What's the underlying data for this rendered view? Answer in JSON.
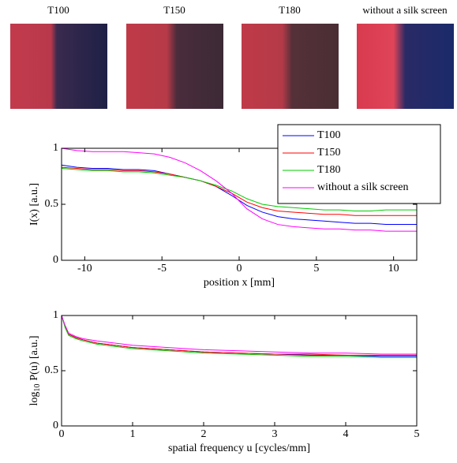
{
  "images": [
    {
      "label": "T100"
    },
    {
      "label": "T150"
    },
    {
      "label": "T180"
    },
    {
      "label": "without a silk screen"
    }
  ],
  "chart_data": [
    {
      "type": "line",
      "x_label": "position x [mm]",
      "y_label": "I(x) [a.u.]",
      "xlim": [
        -11.5,
        11.5
      ],
      "ylim": [
        0,
        1
      ],
      "xticks": [
        -10,
        -5,
        0,
        5,
        10
      ],
      "yticks": [
        0,
        0.5,
        1
      ],
      "legend": "top-right",
      "x": [
        -11.5,
        -10.5,
        -9.5,
        -8.5,
        -7.5,
        -6.5,
        -5.5,
        -4.5,
        -3.5,
        -2.5,
        -1.5,
        -0.5,
        0.5,
        1.5,
        2.5,
        3.5,
        4.5,
        5.5,
        6.5,
        7.5,
        8.5,
        9.5,
        10.5,
        11.5
      ],
      "series": [
        {
          "name": "T100",
          "color": "#0000ff",
          "values": [
            0.85,
            0.83,
            0.82,
            0.82,
            0.81,
            0.81,
            0.8,
            0.77,
            0.74,
            0.71,
            0.66,
            0.58,
            0.49,
            0.43,
            0.39,
            0.37,
            0.36,
            0.35,
            0.34,
            0.33,
            0.33,
            0.32,
            0.32,
            0.32
          ]
        },
        {
          "name": "T150",
          "color": "#ff0000",
          "values": [
            0.83,
            0.82,
            0.81,
            0.81,
            0.8,
            0.8,
            0.79,
            0.77,
            0.74,
            0.71,
            0.66,
            0.6,
            0.52,
            0.47,
            0.44,
            0.43,
            0.42,
            0.41,
            0.41,
            0.4,
            0.4,
            0.4,
            0.4,
            0.4
          ]
        },
        {
          "name": "T180",
          "color": "#00cc00",
          "values": [
            0.82,
            0.81,
            0.8,
            0.8,
            0.79,
            0.79,
            0.78,
            0.76,
            0.74,
            0.71,
            0.67,
            0.62,
            0.55,
            0.5,
            0.48,
            0.47,
            0.46,
            0.45,
            0.45,
            0.44,
            0.44,
            0.45,
            0.45,
            0.45
          ]
        },
        {
          "name": "without a silk screen",
          "color": "#ff00ff",
          "values": [
            1.0,
            0.98,
            0.97,
            0.97,
            0.97,
            0.96,
            0.95,
            0.92,
            0.87,
            0.8,
            0.71,
            0.6,
            0.46,
            0.37,
            0.32,
            0.3,
            0.29,
            0.28,
            0.28,
            0.27,
            0.27,
            0.26,
            0.26,
            0.26
          ]
        }
      ]
    },
    {
      "type": "line",
      "x_label": "spatial frequency u [cycles/mm]",
      "y_label": {
        "base": "log",
        "sub": "10",
        "rest": "P(u) [a.u.]"
      },
      "xlim": [
        0,
        5
      ],
      "ylim": [
        0,
        1
      ],
      "xticks": [
        0,
        1,
        2,
        3,
        4,
        5
      ],
      "yticks": [
        0,
        0.5,
        1
      ],
      "x": [
        0,
        0.05,
        0.1,
        0.2,
        0.3,
        0.5,
        0.75,
        1,
        1.5,
        2,
        2.5,
        3,
        3.5,
        4,
        4.5,
        5
      ],
      "series": [
        {
          "name": "T100",
          "color": "#0000ff",
          "values": [
            1.0,
            0.9,
            0.83,
            0.8,
            0.78,
            0.75,
            0.73,
            0.71,
            0.69,
            0.67,
            0.66,
            0.65,
            0.64,
            0.64,
            0.63,
            0.63
          ]
        },
        {
          "name": "T150",
          "color": "#ff0000",
          "values": [
            1.0,
            0.9,
            0.83,
            0.8,
            0.78,
            0.75,
            0.73,
            0.71,
            0.69,
            0.67,
            0.66,
            0.65,
            0.65,
            0.64,
            0.64,
            0.64
          ]
        },
        {
          "name": "T180",
          "color": "#00cc00",
          "values": [
            1.0,
            0.89,
            0.82,
            0.79,
            0.77,
            0.74,
            0.72,
            0.7,
            0.68,
            0.66,
            0.65,
            0.64,
            0.63,
            0.63,
            0.62,
            0.62
          ]
        },
        {
          "name": "without a silk screen",
          "color": "#ff00ff",
          "values": [
            1.0,
            0.91,
            0.84,
            0.81,
            0.79,
            0.77,
            0.75,
            0.73,
            0.71,
            0.69,
            0.68,
            0.67,
            0.66,
            0.66,
            0.65,
            0.65
          ]
        }
      ]
    }
  ]
}
